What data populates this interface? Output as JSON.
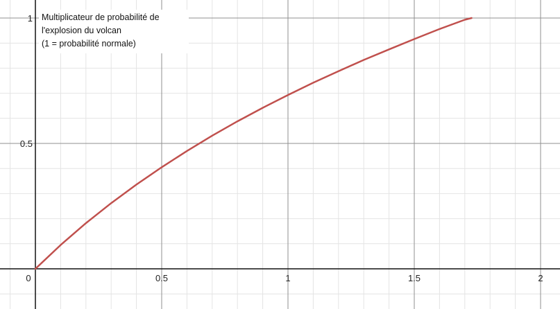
{
  "chart_data": {
    "type": "line",
    "title": "",
    "xlabel": "",
    "ylabel": "",
    "xlim": [
      0,
      2.06
    ],
    "ylim": [
      -0.16,
      1.07
    ],
    "grid": true,
    "x_ticks": [
      {
        "value": 0,
        "label": "0"
      },
      {
        "value": 0.5,
        "label": "0.5"
      },
      {
        "value": 1,
        "label": "1"
      },
      {
        "value": 1.5,
        "label": "1.5"
      },
      {
        "value": 2,
        "label": "2"
      }
    ],
    "y_ticks": [
      {
        "value": 0.5,
        "label": "0.5"
      },
      {
        "value": 1,
        "label": "1"
      }
    ],
    "annotation": {
      "lines": [
        "Multiplicateur de probabilité de",
        "l'explosion du volcan",
        "(1 = probabilité normale)"
      ]
    },
    "series": [
      {
        "color": "#c0504d",
        "x": [
          0,
          0.1,
          0.2,
          0.3,
          0.4,
          0.5,
          0.6,
          0.7,
          0.8,
          0.9,
          1.0,
          1.1,
          1.2,
          1.3,
          1.4,
          1.5,
          1.6,
          1.7,
          1.727
        ],
        "y": [
          0,
          0.095,
          0.182,
          0.262,
          0.336,
          0.405,
          0.47,
          0.531,
          0.588,
          0.642,
          0.693,
          0.742,
          0.788,
          0.833,
          0.875,
          0.916,
          0.956,
          0.993,
          1.0
        ]
      }
    ]
  }
}
